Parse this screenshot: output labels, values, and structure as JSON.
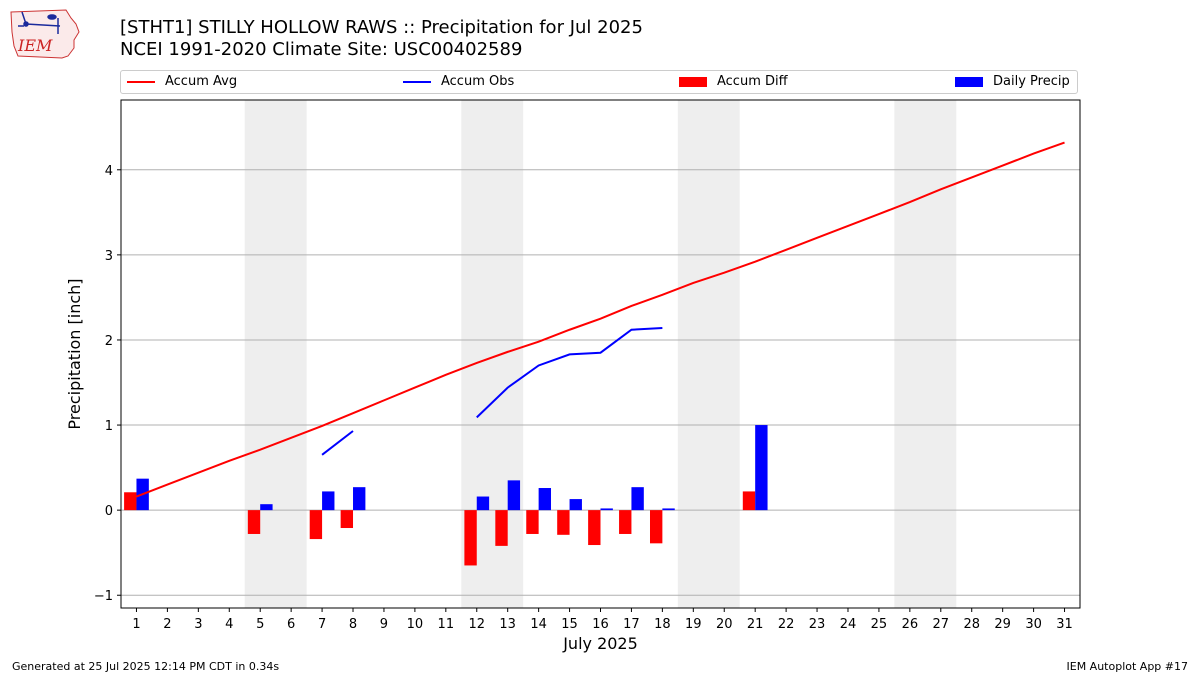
{
  "header": {
    "title_line1": "[STHT1] STILLY HOLLOW RAWS :: Precipitation for Jul 2025",
    "title_line2": "NCEI 1991-2020 Climate Site: USC00402589",
    "logo_text": "IEM"
  },
  "footer": {
    "left": "Generated at 25 Jul 2025 12:14 PM CDT in 0.34s",
    "right": "IEM Autoplot App #17"
  },
  "colors": {
    "accum_avg": "#ff0000",
    "accum_obs": "#0000ff",
    "accum_diff": "#ff0000",
    "daily_precip": "#0000ff",
    "weekend_shade": "#eeeeee",
    "grid": "#b0b0b0"
  },
  "chart_data": {
    "type": "bar",
    "xlabel": "July 2025",
    "ylabel": "Precipitation [inch]",
    "xlim": [
      0.5,
      31.5
    ],
    "ylim": [
      -1.15,
      4.82
    ],
    "y_ticks": [
      -1,
      0,
      1,
      2,
      3,
      4
    ],
    "x_ticks": [
      1,
      2,
      3,
      4,
      5,
      6,
      7,
      8,
      9,
      10,
      11,
      12,
      13,
      14,
      15,
      16,
      17,
      18,
      19,
      20,
      21,
      22,
      23,
      24,
      25,
      26,
      27,
      28,
      29,
      30,
      31
    ],
    "grid": "horizontal",
    "legend_position": "top",
    "weekend_spans": [
      [
        4.5,
        6.5
      ],
      [
        11.5,
        13.5
      ],
      [
        18.5,
        20.5
      ],
      [
        25.5,
        27.5
      ]
    ],
    "legend": [
      "Accum Avg",
      "Accum Obs",
      "Accum Diff",
      "Daily Precip"
    ],
    "series": [
      {
        "name": "Accum Avg",
        "kind": "line",
        "x": [
          1,
          2,
          3,
          4,
          5,
          6,
          7,
          8,
          9,
          10,
          11,
          12,
          13,
          14,
          15,
          16,
          17,
          18,
          19,
          20,
          21,
          22,
          23,
          24,
          25,
          26,
          27,
          28,
          29,
          30,
          31
        ],
        "values": [
          0.16,
          0.3,
          0.44,
          0.58,
          0.71,
          0.85,
          0.99,
          1.14,
          1.29,
          1.44,
          1.59,
          1.73,
          1.86,
          1.98,
          2.12,
          2.25,
          2.4,
          2.53,
          2.67,
          2.79,
          2.92,
          3.06,
          3.2,
          3.34,
          3.48,
          3.62,
          3.77,
          3.91,
          4.05,
          4.19,
          4.32
        ]
      },
      {
        "name": "Accum Obs",
        "kind": "line",
        "x": [
          7,
          8,
          12,
          13,
          14,
          15,
          16,
          17,
          18
        ],
        "segments": [
          {
            "x": [
              7,
              8
            ],
            "values": [
              0.65,
              0.93
            ]
          },
          {
            "x": [
              12,
              13,
              14,
              15,
              16,
              17,
              18
            ],
            "values": [
              1.09,
              1.44,
              1.7,
              1.83,
              1.85,
              2.12,
              2.14
            ]
          }
        ]
      },
      {
        "name": "Accum Diff",
        "kind": "bar",
        "x": [
          1,
          5,
          7,
          8,
          12,
          13,
          14,
          15,
          16,
          17,
          18,
          21
        ],
        "values": [
          0.21,
          -0.28,
          -0.34,
          -0.21,
          -0.65,
          -0.42,
          -0.28,
          -0.29,
          -0.41,
          -0.28,
          -0.39,
          0.22
        ]
      },
      {
        "name": "Daily Precip",
        "kind": "bar",
        "x": [
          1,
          5,
          7,
          8,
          12,
          13,
          14,
          15,
          16,
          17,
          18,
          21
        ],
        "values": [
          0.37,
          0.07,
          0.22,
          0.27,
          0.16,
          0.35,
          0.26,
          0.13,
          0.02,
          0.27,
          0.02,
          1.0
        ]
      }
    ]
  }
}
